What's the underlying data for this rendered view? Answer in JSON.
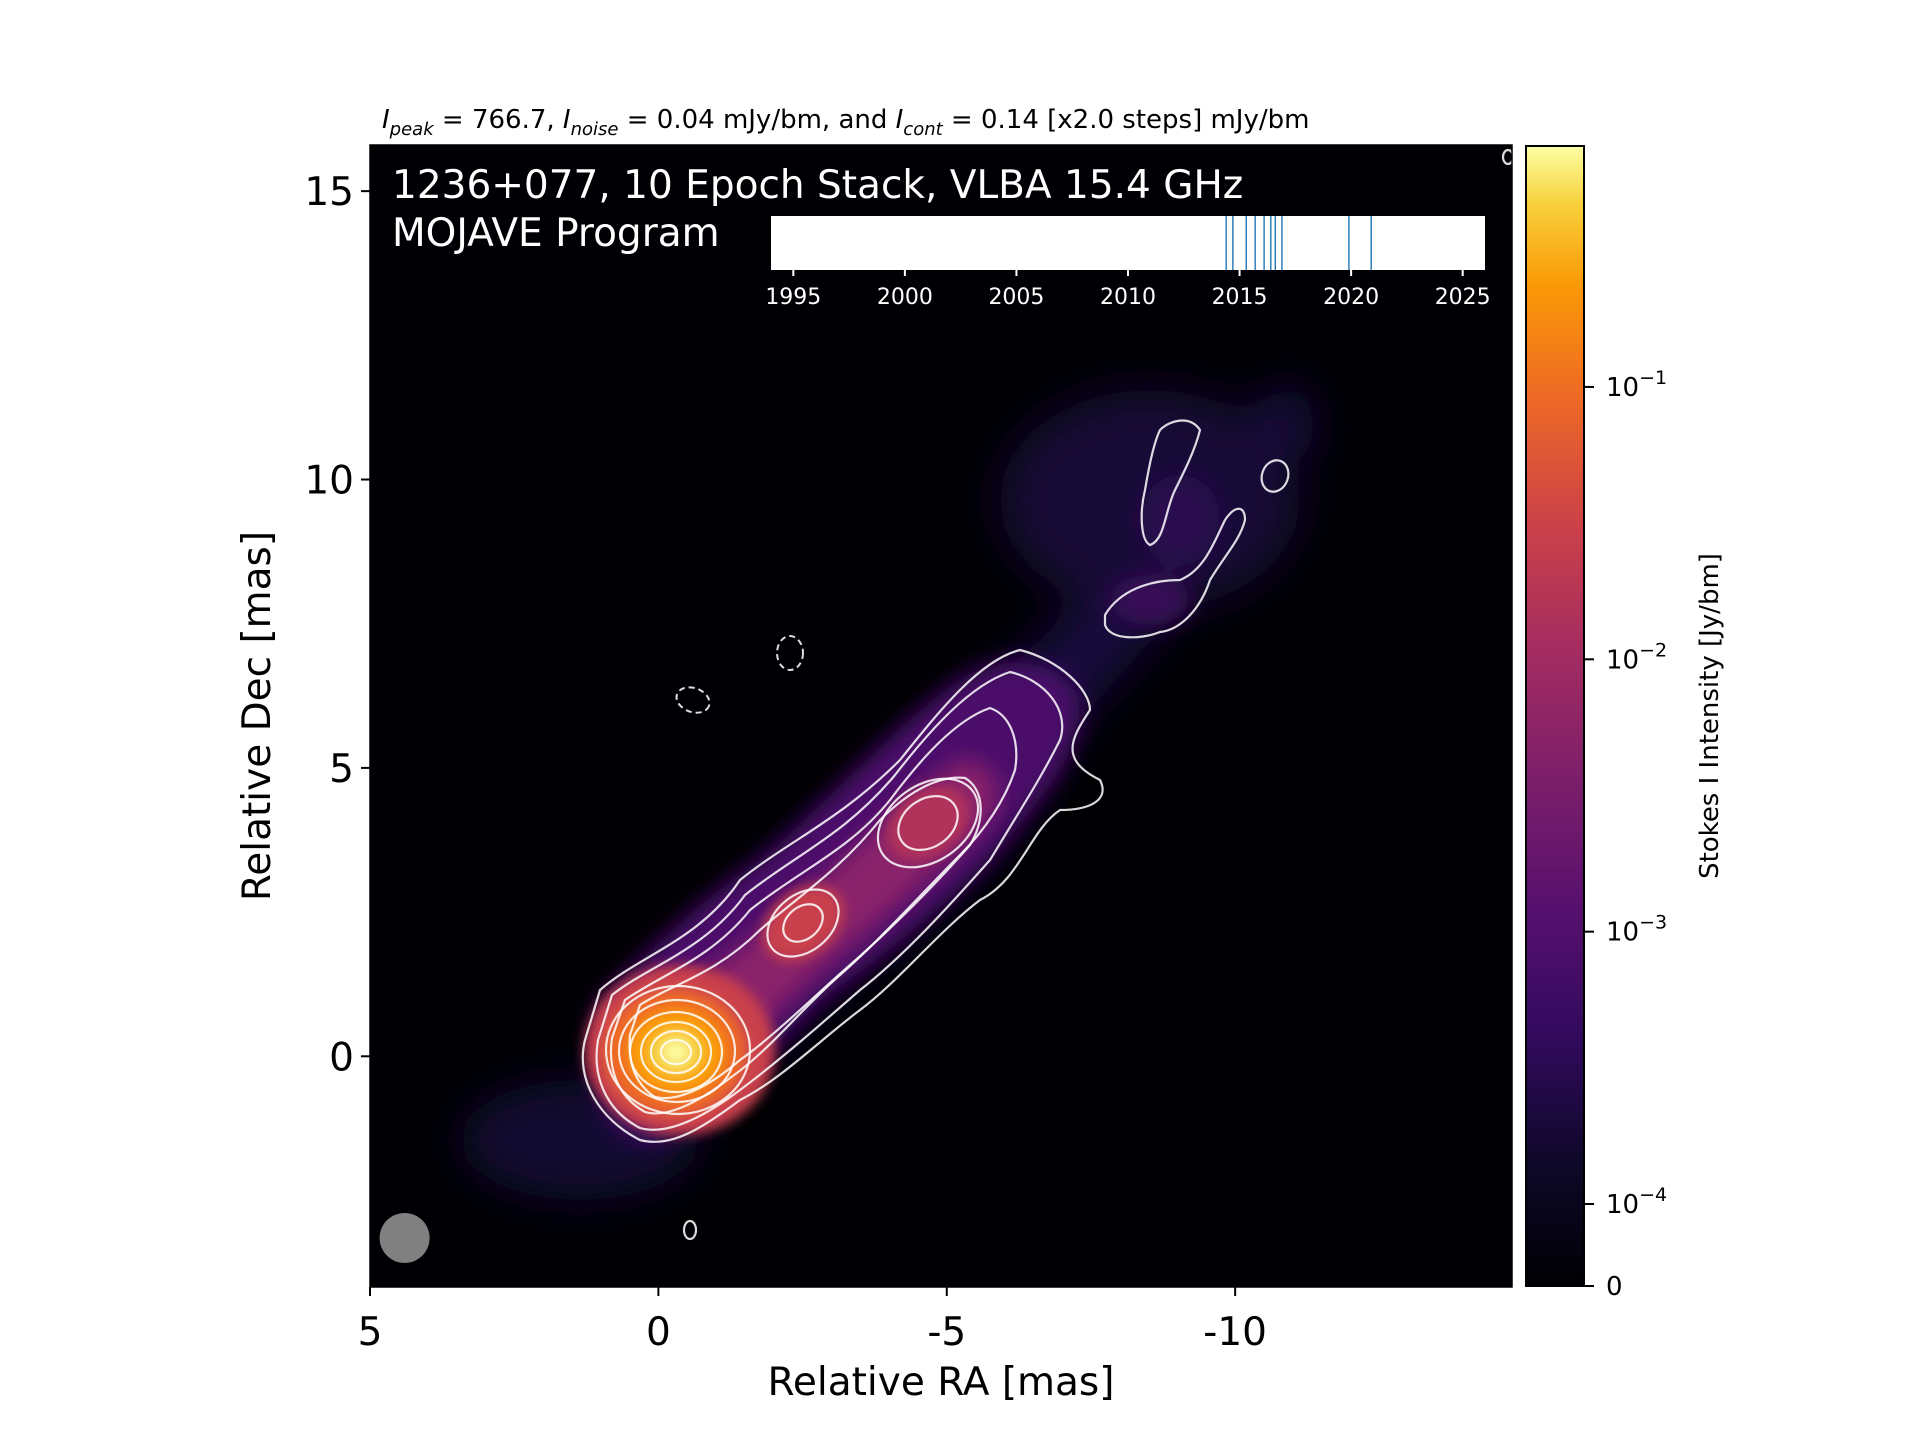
{
  "chart_data": {
    "type": "heatmap",
    "title_parts": {
      "peak_sym": "I",
      "peak_sub": "peak",
      "peak_val": " = 766.7, ",
      "noise_sym": "I",
      "noise_sub": "noise",
      "noise_val": " = 0.04 mJy/bm, and ",
      "cont_sym": "I",
      "cont_sub": "cont",
      "cont_val": " = 0.14 [x2.0 steps] mJy/bm"
    },
    "overlay_line1": "1236+077, 10 Epoch Stack, VLBA 15.4 GHz",
    "overlay_line2": "MOJAVE Program",
    "xlabel": "Relative RA [mas]",
    "ylabel": "Relative Dec [mas]",
    "xlim": [
      5,
      -14.8
    ],
    "ylim": [
      -4,
      15.8
    ],
    "x_axis_inverted": true,
    "xticks": [
      5,
      0,
      -5,
      -10
    ],
    "xtick_labels": [
      "5",
      "0",
      "-5",
      "-10"
    ],
    "yticks": [
      0,
      5,
      10,
      15
    ],
    "ytick_labels": [
      "0",
      "5",
      "10",
      "15"
    ],
    "colormap": "inferno",
    "colorbar": {
      "label": "Stokes I Intensity [Jy/bm]",
      "scale": "log",
      "ticks": [
        0,
        0.0001,
        0.001,
        0.01,
        0.1
      ],
      "tick_labels": [
        {
          "base": "0",
          "exp": ""
        },
        {
          "base": "10",
          "exp": "−4"
        },
        {
          "base": "10",
          "exp": "−3"
        },
        {
          "base": "10",
          "exp": "−2"
        },
        {
          "base": "10",
          "exp": "−1"
        }
      ]
    },
    "jet_components": [
      {
        "ra": 0.0,
        "dec": 0.0,
        "peak_jy": 0.7667
      },
      {
        "ra": -2.3,
        "dec": 2.2,
        "peak_jy": 0.015
      },
      {
        "ra": -4.5,
        "dec": 4.0,
        "peak_jy": 0.01
      },
      {
        "ra": -9.5,
        "dec": 8.8,
        "peak_jy": 0.0004
      }
    ],
    "beam": {
      "ra": 4.4,
      "dec": -3.15
    },
    "epoch_timeline": {
      "xlim": [
        1994,
        2026
      ],
      "ticks": [
        1995,
        2000,
        2005,
        2010,
        2015,
        2020,
        2025
      ],
      "tick_labels": [
        "1995",
        "2000",
        "2005",
        "2010",
        "2015",
        "2020",
        "2025"
      ],
      "epochs": [
        2014.4,
        2014.7,
        2015.3,
        2015.7,
        2016.1,
        2016.4,
        2016.6,
        2016.9,
        2019.9,
        2020.9
      ]
    },
    "colors": {
      "background": "#000004",
      "contour": "#ffffff",
      "beam": "#808080",
      "epoch_line": "#1f77b4"
    }
  }
}
